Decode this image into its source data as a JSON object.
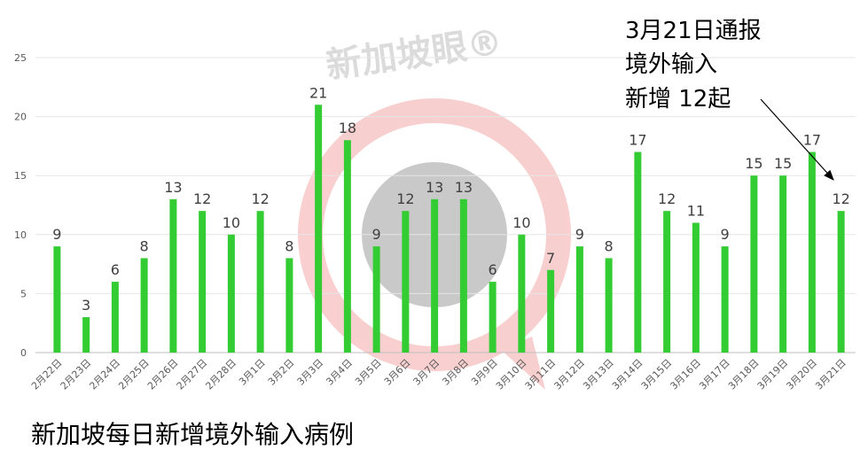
{
  "chart_data": {
    "type": "bar",
    "title": "新加坡每日新增境外输入病例",
    "xlabel": "",
    "ylabel": "",
    "ylim": [
      0,
      25
    ],
    "yticks": [
      0,
      5,
      10,
      15,
      20,
      25
    ],
    "grid": true,
    "legend": "none",
    "bar_color": "#33cc33",
    "categories": [
      "2月22日",
      "2月23日",
      "2月24日",
      "2月25日",
      "2月26日",
      "2月27日",
      "2月28日",
      "3月1日",
      "3月2日",
      "3月3日",
      "3月4日",
      "3月5日",
      "3月6日",
      "3月7日",
      "3月8日",
      "3月9日",
      "3月10日",
      "3月11日",
      "3月12日",
      "3月13日",
      "3月14日",
      "3月15日",
      "3月16日",
      "3月17日",
      "3月18日",
      "3月19日",
      "3月20日",
      "3月21日"
    ],
    "values": [
      9,
      3,
      6,
      8,
      13,
      12,
      10,
      12,
      8,
      21,
      18,
      9,
      12,
      13,
      13,
      6,
      10,
      7,
      9,
      8,
      17,
      12,
      11,
      9,
      15,
      15,
      17,
      12
    ],
    "annotation": {
      "lines": [
        "3月21日通报",
        "境外输入",
        "新增 12起"
      ],
      "target_category": "3月21日"
    }
  },
  "watermark": {
    "text": "新加坡眼®",
    "ring_color": "#f4b6b6",
    "center_color": "#bfbfbf"
  }
}
